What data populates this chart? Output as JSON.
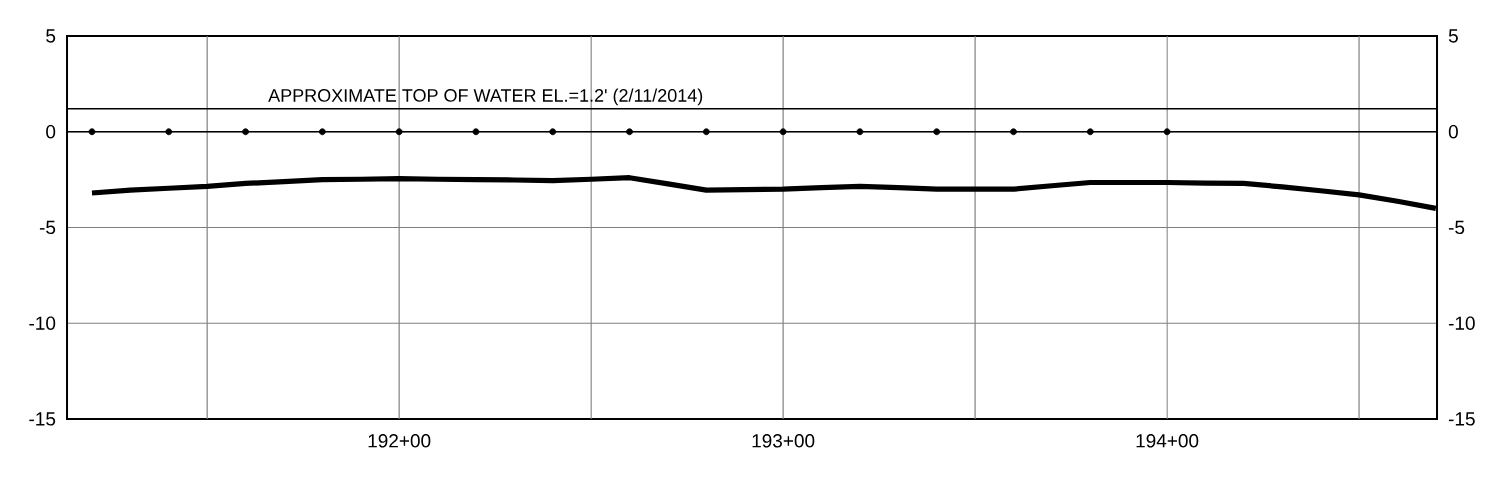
{
  "chart_data": {
    "type": "line",
    "categories": [
      null,
      null,
      null,
      null,
      null,
      null,
      null,
      null,
      "192+00",
      null,
      null,
      null,
      null,
      null,
      null,
      null,
      null,
      null,
      "193+00",
      null,
      null,
      null,
      null,
      null,
      null,
      null,
      null,
      null,
      "194+00",
      null,
      null,
      null,
      null,
      null,
      null,
      null
    ],
    "ylim": [
      -15,
      5
    ],
    "yticks": [
      -15,
      -10,
      -5,
      0,
      5
    ],
    "y2lim": [
      -15,
      5
    ],
    "y2ticks": [
      -15,
      -10,
      -5,
      0,
      5
    ],
    "grid": true,
    "ref_lines": [
      {
        "axis": "y",
        "value": 1.2,
        "label": "APPROXIMATE TOP OF WATER EL.=1.2' (2/11/2014)",
        "color": "#000000"
      },
      {
        "axis": "y",
        "value": 0,
        "color": "#000000"
      }
    ],
    "series": [
      {
        "color": "#000000",
        "marker": "none",
        "line_style": "solid",
        "values": [
          -3.2,
          -3.05,
          -2.95,
          -2.85,
          -2.7,
          -2.6,
          -2.5,
          -2.48,
          -2.45,
          -2.48,
          -2.5,
          -2.52,
          -2.55,
          -2.48,
          -2.4,
          -2.72,
          -3.05,
          -3.02,
          -3.0,
          -2.92,
          -2.85,
          -2.92,
          -3.0,
          -3.0,
          -3.0,
          -2.82,
          -2.65,
          -2.65,
          -2.65,
          -2.68,
          -2.7,
          -2.88,
          -3.08,
          -3.3,
          -3.63,
          -4.0
        ]
      },
      {
        "type": "scatter",
        "color": "#000000",
        "marker": "circle",
        "values": [
          0,
          null,
          0,
          null,
          0,
          null,
          0,
          null,
          0,
          null,
          0,
          null,
          0,
          null,
          0,
          null,
          0,
          null,
          0,
          null,
          0,
          null,
          0,
          null,
          0,
          null,
          0,
          null,
          0,
          null,
          null,
          null,
          null,
          null,
          null,
          null
        ]
      }
    ]
  }
}
